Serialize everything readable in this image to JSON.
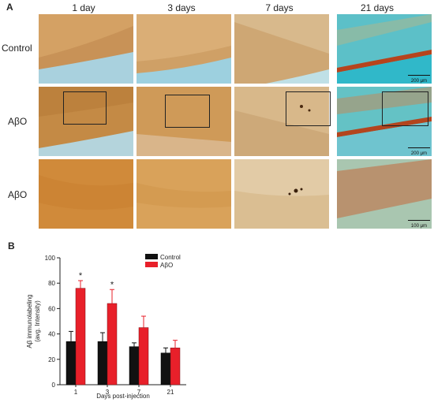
{
  "panel_a": {
    "letter": "A",
    "columns": [
      "1 day",
      "3 days",
      "7 days",
      "21 days"
    ],
    "rows": [
      "Control",
      "AβO",
      "AβO"
    ],
    "scale_bars": [
      "200 μm",
      "200 μm",
      "100 μm"
    ]
  },
  "panel_b": {
    "letter": "B"
  },
  "colors": {
    "control": "#111111",
    "abo": "#e8202a"
  },
  "chart_data": {
    "type": "bar",
    "categories": [
      "1",
      "3",
      "7",
      "21"
    ],
    "series": [
      {
        "name": "Control",
        "values": [
          34,
          34,
          30,
          25
        ],
        "errors": [
          8,
          7,
          3,
          4
        ]
      },
      {
        "name": "AβO",
        "values": [
          76,
          64,
          45,
          29
        ],
        "errors": [
          6,
          11,
          9,
          6
        ]
      }
    ],
    "significance": [
      "*",
      "*",
      "",
      ""
    ],
    "xlabel": "Days post-injection",
    "ylabel_line1": "Aβ immunolabeling",
    "ylabel_line2": "(avg. Intensity)",
    "ylim": [
      0,
      100
    ],
    "yticks": [
      0,
      20,
      40,
      60,
      80,
      100
    ],
    "legend_position": "top-right"
  }
}
